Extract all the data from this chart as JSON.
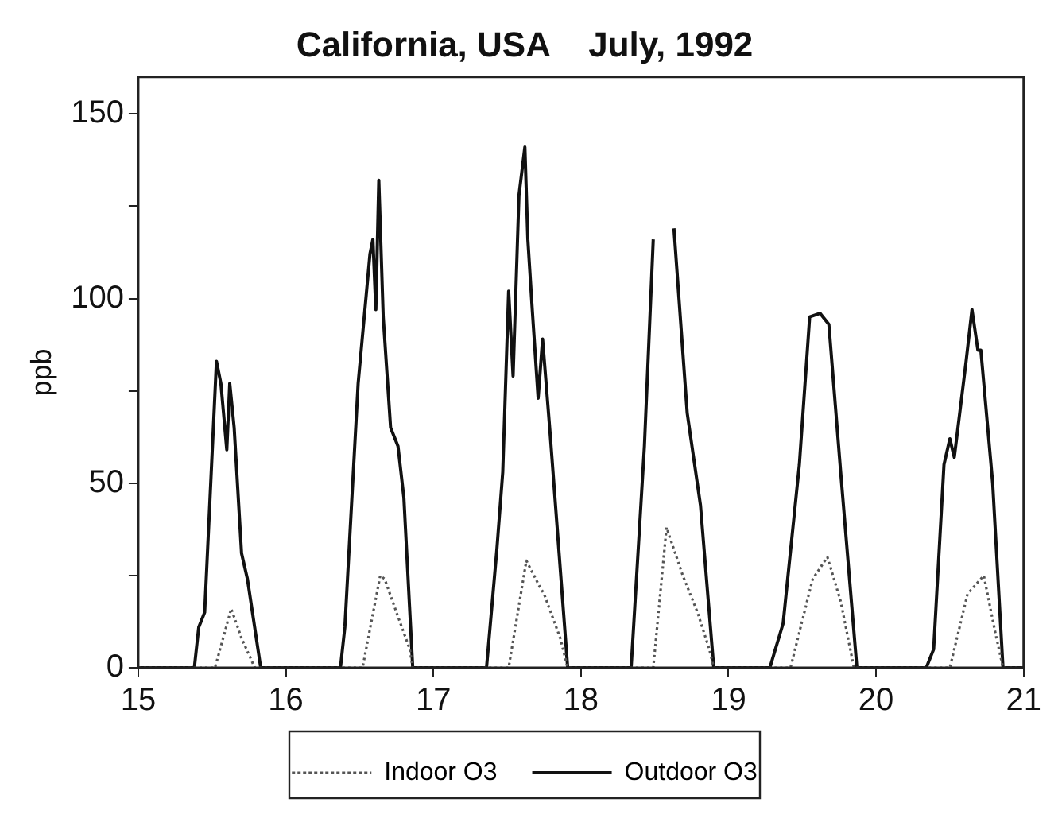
{
  "chart_data": {
    "type": "line",
    "title": "California, USA    July, 1992",
    "ylabel": "ppb",
    "xlim": [
      15,
      21
    ],
    "xticks": [
      15,
      16,
      17,
      18,
      19,
      20,
      21
    ],
    "ylim": [
      0,
      160
    ],
    "yticks": [
      0,
      {
        "value": 25,
        "label": null
      },
      50,
      {
        "value": 75,
        "label": null
      },
      100,
      {
        "value": 125,
        "label": null
      },
      150
    ],
    "grid": false,
    "legend": "bottom",
    "marker": "none",
    "series": [
      {
        "name": "Indoor O3",
        "color": "#555555",
        "line_style": "dotted",
        "x": [
          15,
          15.52,
          15.63,
          15.7,
          15.79,
          16.52,
          16.64,
          16.67,
          16.75,
          16.84,
          16.86,
          17.51,
          17.63,
          17.72,
          17.75,
          17.86,
          17.91,
          18.49,
          18.58,
          18.69,
          18.79,
          18.87,
          18.9,
          19.42,
          19.57,
          19.67,
          19.76,
          19.85,
          20.5,
          20.62,
          20.73,
          20.8,
          20.86,
          21
        ],
        "values": [
          0,
          0,
          16,
          8,
          0,
          0,
          25,
          24,
          15,
          5,
          0,
          0,
          29,
          22,
          20,
          8,
          0,
          0,
          38,
          25,
          15,
          5,
          0,
          0,
          24,
          30,
          18,
          0,
          0,
          20,
          25,
          11,
          0,
          0
        ]
      },
      {
        "name": "Outdoor O3",
        "color": "#111111",
        "line_style": "solid",
        "x": [
          15,
          15.38,
          15.41,
          15.45,
          15.53,
          15.56,
          15.6,
          15.62,
          15.65,
          15.7,
          15.74,
          15.83,
          16.37,
          16.4,
          16.49,
          16.57,
          16.59,
          16.61,
          16.63,
          16.66,
          16.71,
          16.76,
          16.8,
          16.86,
          17.36,
          17.43,
          17.47,
          17.51,
          17.54,
          17.58,
          17.62,
          17.64,
          17.67,
          17.71,
          17.74,
          17.79,
          17.91,
          18.34,
          18.43,
          18.49,
          18.53,
          18.56,
          18.63,
          18.72,
          18.81,
          18.9,
          19.28,
          19.37,
          19.48,
          19.55,
          19.62,
          19.68,
          19.76,
          19.87,
          20.34,
          20.39,
          20.46,
          20.5,
          20.53,
          20.61,
          20.65,
          20.69,
          20.71,
          20.79,
          20.86,
          21
        ],
        "values": [
          0,
          0,
          11,
          15,
          83,
          77,
          59,
          77,
          65,
          31,
          24,
          0,
          0,
          11,
          77,
          112,
          116,
          97,
          132,
          95,
          65,
          60,
          46,
          0,
          0,
          32,
          53,
          102,
          79,
          128,
          141,
          116,
          97,
          73,
          89,
          64,
          0,
          0,
          60,
          116,
          null,
          null,
          119,
          69,
          44,
          0,
          0,
          12,
          55,
          95,
          96,
          93,
          53,
          0,
          0,
          5,
          55,
          62,
          57,
          83,
          97,
          86,
          86,
          50,
          0,
          0
        ]
      }
    ]
  }
}
